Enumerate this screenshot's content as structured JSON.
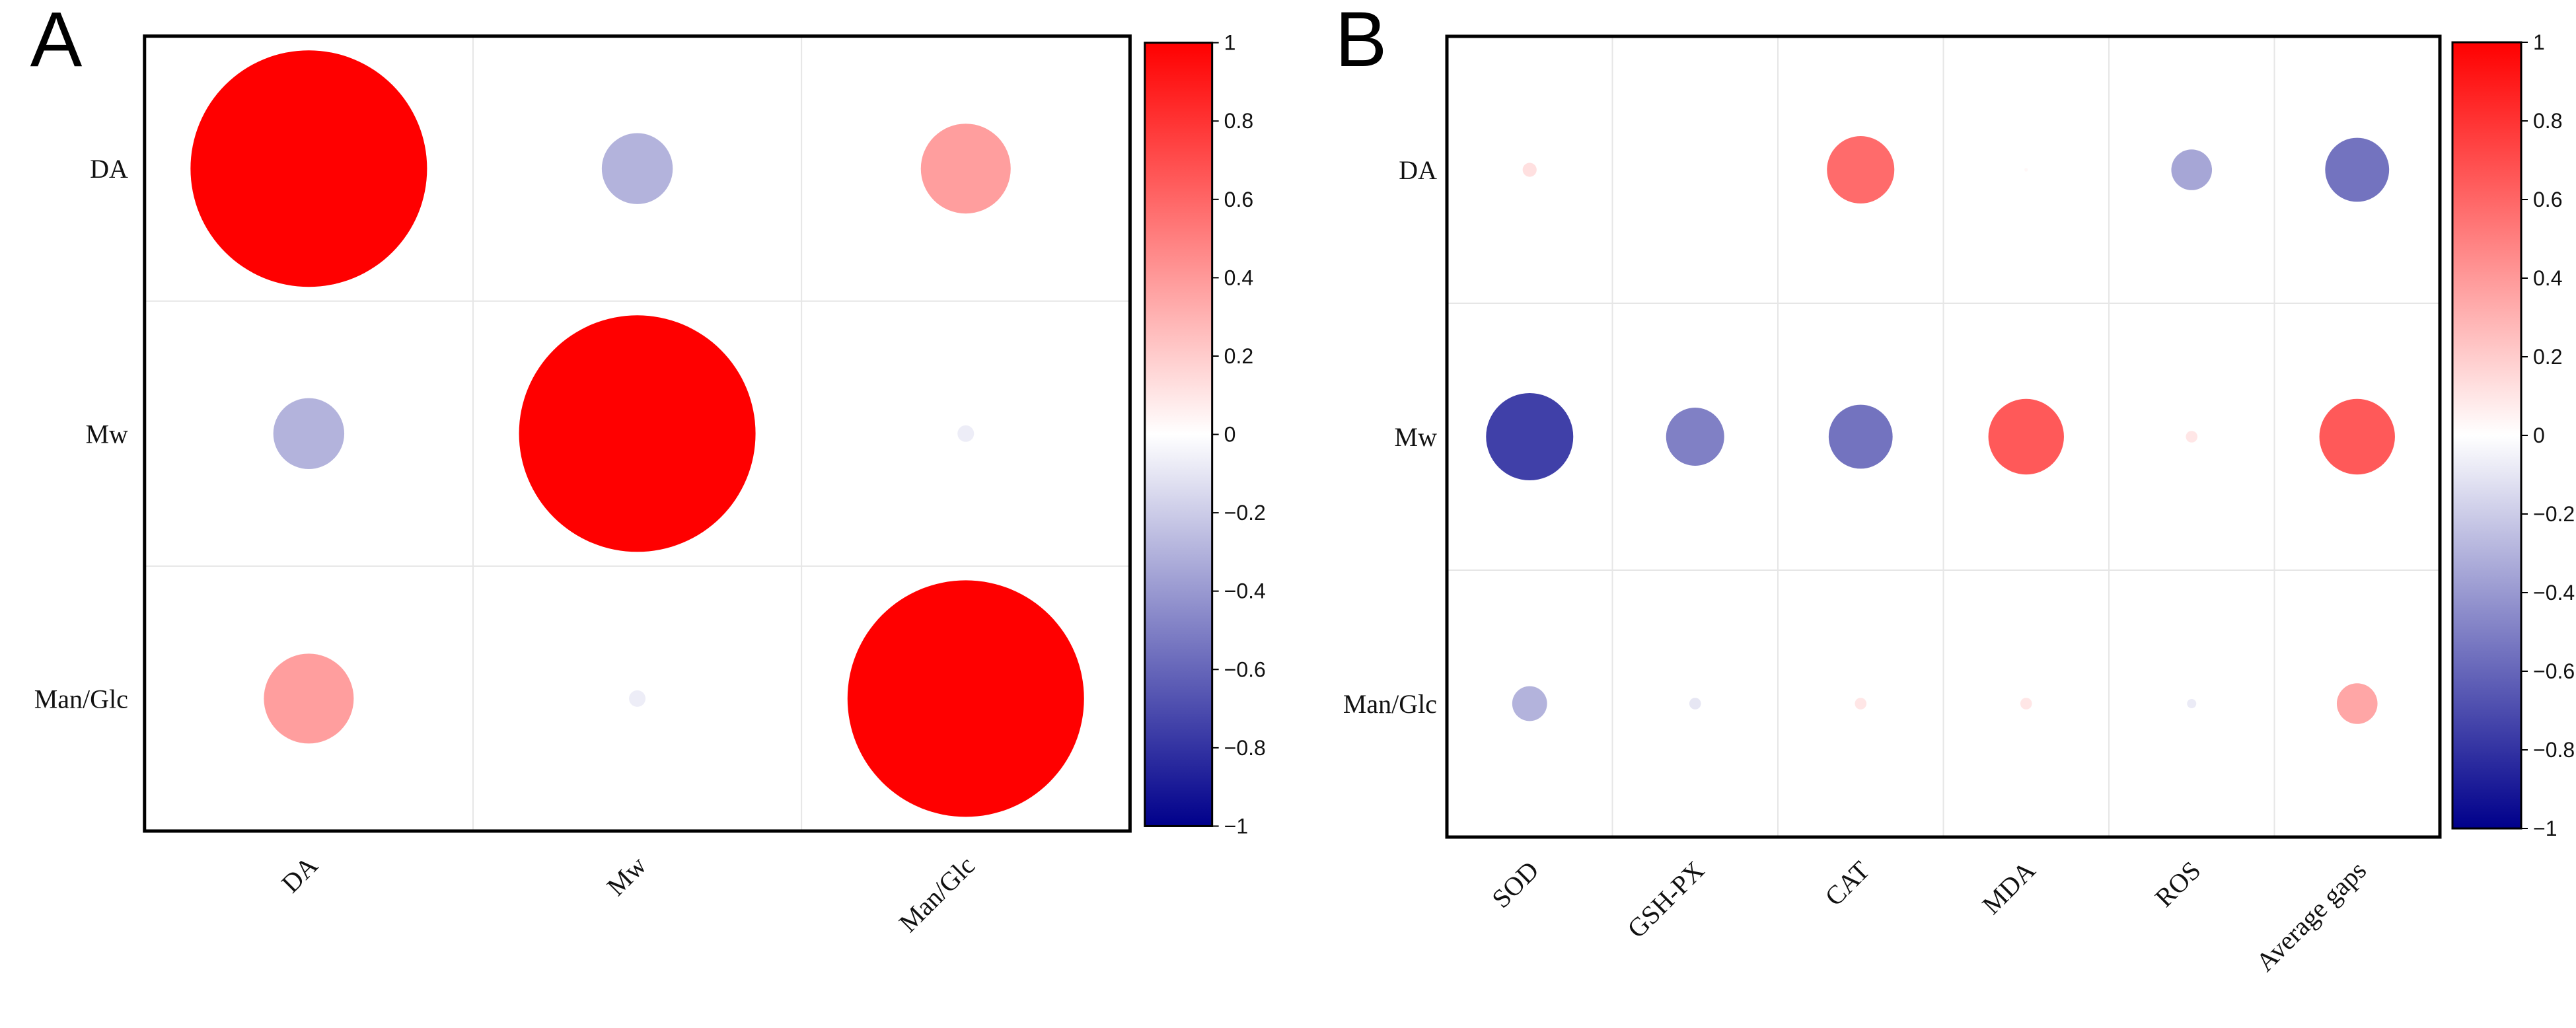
{
  "chart_data": [
    {
      "type": "correlation-bubble-matrix",
      "panel": "A",
      "rows": [
        "DA",
        "Mw",
        "Man/Glc"
      ],
      "columns": [
        "DA",
        "Mw",
        "Man/Glc"
      ],
      "values": [
        [
          1.0,
          -0.3,
          0.38
        ],
        [
          -0.3,
          1.0,
          -0.07
        ],
        [
          0.38,
          -0.07,
          1.0
        ]
      ],
      "colorbar": {
        "range": [
          -1,
          1
        ],
        "ticks": [
          "1",
          "0.8",
          "0.6",
          "0.4",
          "0.2",
          "0",
          "−0.2",
          "−0.4",
          "−0.6",
          "−0.8",
          "−1"
        ]
      },
      "colors": {
        "negative": "#00008b",
        "zero": "#ffffff",
        "positive": "#ff0000"
      }
    },
    {
      "type": "correlation-bubble-matrix",
      "panel": "B",
      "rows": [
        "DA",
        "Mw",
        "Man/Glc"
      ],
      "columns": [
        "SOD",
        "GSH-PX",
        "CAT",
        "MDA",
        "ROS",
        "Average gaps"
      ],
      "values": [
        [
          0.12,
          0.0,
          0.58,
          0.03,
          -0.35,
          -0.55
        ],
        [
          -0.75,
          -0.5,
          -0.55,
          0.65,
          0.1,
          0.65
        ],
        [
          -0.3,
          -0.1,
          0.1,
          0.1,
          -0.08,
          0.35
        ]
      ],
      "colorbar": {
        "range": [
          -1,
          1
        ],
        "ticks": [
          "1",
          "0.8",
          "0.6",
          "0.4",
          "0.2",
          "0",
          "−0.2",
          "−0.4",
          "−0.6",
          "−0.8",
          "−1"
        ]
      },
      "colors": {
        "negative": "#00008b",
        "zero": "#ffffff",
        "positive": "#ff0000"
      }
    }
  ]
}
